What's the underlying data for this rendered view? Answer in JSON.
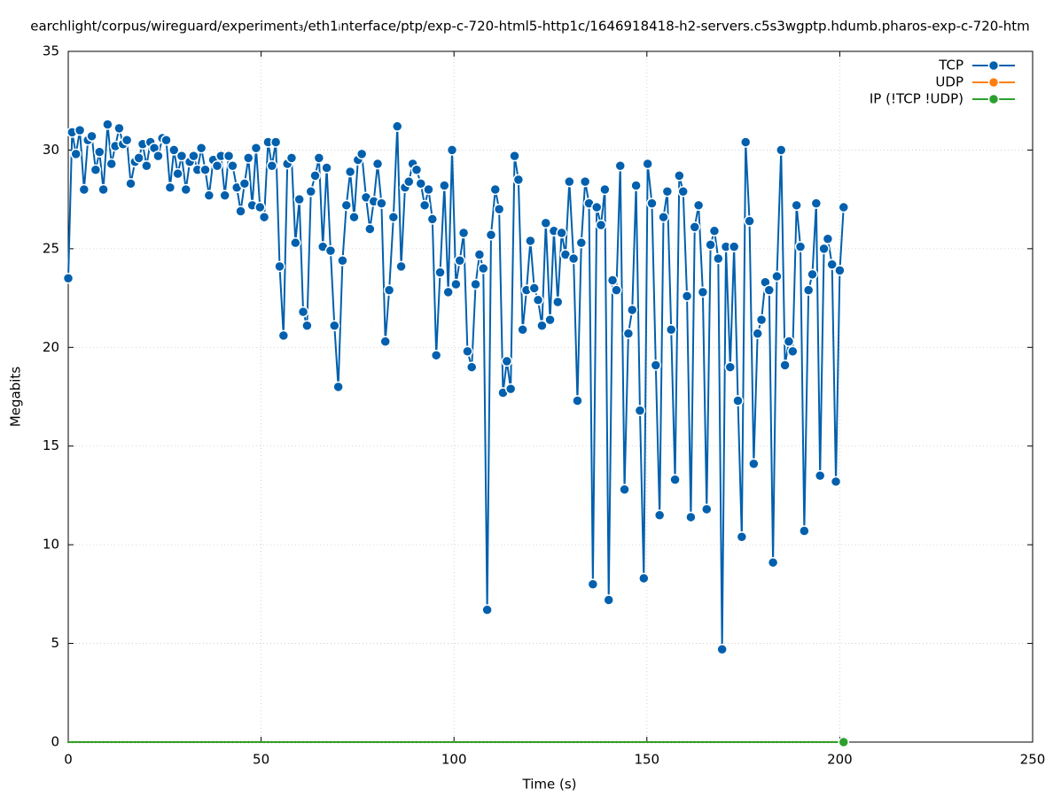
{
  "chart_data": {
    "type": "line",
    "title": "earchlight/corpus/wireguard/experiment₃/eth1ᵢnterface/ptp/exp-c-720-html5-http1c/1646918418-h2-servers.c5s3wgptp.hdumb.pharos-exp-c-720-htm",
    "x_label": "Time (s)",
    "y_label": "Megabits",
    "xlim": [
      0,
      250
    ],
    "xticks": [
      0,
      50,
      100,
      150,
      200,
      250
    ],
    "ylim": [
      0,
      35
    ],
    "yticks": [
      0,
      5,
      10,
      15,
      20,
      25,
      30,
      35
    ],
    "grid": true,
    "legend": "top-right",
    "x": [
      0,
      1,
      2,
      3,
      4.1,
      5.1,
      6.1,
      7.1,
      8.1,
      9.1,
      10.2,
      11.2,
      12.2,
      13.2,
      14.2,
      15.2,
      16.2,
      17.3,
      18.3,
      19.3,
      20.3,
      21.3,
      22.3,
      23.3,
      24.4,
      25.4,
      26.4,
      27.4,
      28.4,
      29.4,
      30.5,
      31.5,
      32.5,
      33.5,
      34.5,
      35.5,
      36.5,
      37.6,
      38.6,
      39.6,
      40.6,
      41.6,
      42.6,
      43.7,
      44.7,
      45.7,
      46.7,
      47.7,
      48.7,
      49.7,
      50.8,
      51.8,
      52.8,
      53.8,
      54.8,
      55.8,
      56.8,
      57.9,
      58.9,
      59.9,
      60.9,
      61.9,
      62.9,
      64,
      65,
      66,
      67,
      68,
      69,
      70,
      71.1,
      72.1,
      73.1,
      74.1,
      75.1,
      76.1,
      77.2,
      78.2,
      79.2,
      80.2,
      81.2,
      82.2,
      83.2,
      84.3,
      85.3,
      86.3,
      87.3,
      88.3,
      89.3,
      90.3,
      91.4,
      92.4,
      93.4,
      94.4,
      95.4,
      96.4,
      97.5,
      98.5,
      99.5,
      100.5,
      101.5,
      102.5,
      103.5,
      104.6,
      105.6,
      106.6,
      107.6,
      108.6,
      109.6,
      110.7,
      111.7,
      112.7,
      113.7,
      114.7,
      115.7,
      116.7,
      117.8,
      118.8,
      119.8,
      120.8,
      121.8,
      122.8,
      123.8,
      124.9,
      125.9,
      126.9,
      127.9,
      128.9,
      129.9,
      131,
      132,
      133,
      134,
      135,
      136,
      137,
      138.1,
      139.1,
      140.1,
      141.1,
      142.1,
      143.1,
      144.2,
      145.2,
      146.2,
      147.2,
      148.2,
      149.2,
      150.2,
      151.3,
      152.3,
      153.3,
      154.3,
      155.3,
      156.3,
      157.3,
      158.4,
      159.4,
      160.4,
      161.4,
      162.4,
      163.4,
      164.5,
      165.5,
      166.5,
      167.5,
      168.5,
      169.5,
      170.5,
      171.6,
      172.6,
      173.6,
      174.6,
      175.6,
      176.6,
      177.7,
      178.7,
      179.7,
      180.7,
      181.7,
      182.7,
      183.7,
      184.8,
      185.8,
      186.8,
      187.8,
      188.8,
      189.8,
      190.8,
      191.9,
      192.9,
      193.9,
      194.9,
      195.9,
      196.9,
      198,
      199,
      200,
      201
    ],
    "series": [
      {
        "name": "TCP",
        "color": "#0060ad",
        "values": [
          23.5,
          30.9,
          29.8,
          31.0,
          28.0,
          30.5,
          30.7,
          29.0,
          29.9,
          28.0,
          31.3,
          29.3,
          30.2,
          31.1,
          30.3,
          30.5,
          28.3,
          29.4,
          29.6,
          30.3,
          29.2,
          30.4,
          30.1,
          29.7,
          30.6,
          30.5,
          28.1,
          30.0,
          28.8,
          29.7,
          28.0,
          29.4,
          29.7,
          29.0,
          30.1,
          29.0,
          27.7,
          29.5,
          29.2,
          29.7,
          27.7,
          29.7,
          29.2,
          28.1,
          26.9,
          28.3,
          29.6,
          27.2,
          30.1,
          27.1,
          26.6,
          30.4,
          29.2,
          30.4,
          24.1,
          20.6,
          29.3,
          29.6,
          25.3,
          27.5,
          21.8,
          21.1,
          27.9,
          28.7,
          29.6,
          25.1,
          29.1,
          24.9,
          21.1,
          18.0,
          24.4,
          27.2,
          28.9,
          26.6,
          29.5,
          29.8,
          27.6,
          26.0,
          27.4,
          29.3,
          27.3,
          20.3,
          22.9,
          26.6,
          31.2,
          24.1,
          28.1,
          28.4,
          29.3,
          29.0,
          28.3,
          27.2,
          28.0,
          26.5,
          19.6,
          23.8,
          28.2,
          22.8,
          30.0,
          23.2,
          24.4,
          25.8,
          19.8,
          19.0,
          23.2,
          24.7,
          24.0,
          6.7,
          25.7,
          28.0,
          27.0,
          17.7,
          19.3,
          17.9,
          29.7,
          28.5,
          20.9,
          22.9,
          25.4,
          23.0,
          22.4,
          21.1,
          26.3,
          21.4,
          25.9,
          22.3,
          25.8,
          24.7,
          28.4,
          24.5,
          17.3,
          25.3,
          28.4,
          27.3,
          8.0,
          27.1,
          26.2,
          28.0,
          7.2,
          23.4,
          22.9,
          29.2,
          12.8,
          20.7,
          21.9,
          28.2,
          16.8,
          8.3,
          29.3,
          27.3,
          19.1,
          11.5,
          26.6,
          27.9,
          20.9,
          13.3,
          28.7,
          27.9,
          22.6,
          11.4,
          26.1,
          27.2,
          22.8,
          11.8,
          25.2,
          25.9,
          24.5,
          4.7,
          25.1,
          19.0,
          25.1,
          17.3,
          10.4,
          30.4,
          26.4,
          14.1,
          20.7,
          21.4,
          23.3,
          22.9,
          9.1,
          23.6,
          30.0,
          19.1,
          20.3,
          19.8,
          27.2,
          25.1,
          10.7,
          22.9,
          23.7,
          27.3,
          13.5,
          25.0,
          25.5,
          24.2,
          13.2,
          23.9,
          27.1
        ]
      },
      {
        "name": "UDP",
        "color": "#ff7f0e",
        "values": [
          0,
          0,
          0,
          0,
          0,
          0,
          0,
          0,
          0,
          0,
          0,
          0,
          0,
          0,
          0,
          0,
          0,
          0,
          0,
          0,
          0,
          0,
          0,
          0,
          0,
          0,
          0,
          0,
          0,
          0,
          0,
          0,
          0,
          0,
          0,
          0,
          0,
          0,
          0,
          0,
          0,
          0,
          0,
          0,
          0,
          0,
          0,
          0,
          0,
          0,
          0,
          0,
          0,
          0,
          0,
          0,
          0,
          0,
          0,
          0,
          0,
          0,
          0,
          0,
          0,
          0,
          0,
          0,
          0,
          0,
          0,
          0,
          0,
          0,
          0,
          0,
          0,
          0,
          0,
          0,
          0,
          0,
          0,
          0,
          0,
          0,
          0,
          0,
          0,
          0,
          0,
          0,
          0,
          0,
          0,
          0,
          0,
          0,
          0,
          0,
          0,
          0,
          0,
          0,
          0,
          0,
          0,
          0,
          0,
          0,
          0,
          0,
          0,
          0,
          0,
          0,
          0,
          0,
          0,
          0,
          0,
          0,
          0,
          0,
          0,
          0,
          0,
          0,
          0,
          0,
          0,
          0,
          0,
          0,
          0,
          0,
          0,
          0,
          0,
          0,
          0,
          0,
          0,
          0,
          0,
          0,
          0,
          0,
          0,
          0,
          0,
          0,
          0,
          0,
          0,
          0,
          0,
          0,
          0,
          0,
          0,
          0,
          0,
          0,
          0,
          0,
          0,
          0,
          0,
          0,
          0,
          0,
          0,
          0,
          0,
          0,
          0,
          0,
          0,
          0,
          0,
          0,
          0,
          0,
          0,
          0,
          0,
          0,
          0,
          0,
          0,
          0,
          0,
          0,
          0,
          0,
          0,
          0,
          0
        ]
      },
      {
        "name": "IP (!TCP  !UDP)",
        "color": "#2ca02c",
        "values": [
          0,
          0,
          0,
          0,
          0,
          0,
          0,
          0,
          0,
          0,
          0,
          0,
          0,
          0,
          0,
          0,
          0,
          0,
          0,
          0,
          0,
          0,
          0,
          0,
          0,
          0,
          0,
          0,
          0,
          0,
          0,
          0,
          0,
          0,
          0,
          0,
          0,
          0,
          0,
          0,
          0,
          0,
          0,
          0,
          0,
          0,
          0,
          0,
          0,
          0,
          0,
          0,
          0,
          0,
          0,
          0,
          0,
          0,
          0,
          0,
          0,
          0,
          0,
          0,
          0,
          0,
          0,
          0,
          0,
          0,
          0,
          0,
          0,
          0,
          0,
          0,
          0,
          0,
          0,
          0,
          0,
          0,
          0,
          0,
          0,
          0,
          0,
          0,
          0,
          0,
          0,
          0,
          0,
          0,
          0,
          0,
          0,
          0,
          0,
          0,
          0,
          0,
          0,
          0,
          0,
          0,
          0,
          0,
          0,
          0,
          0,
          0,
          0,
          0,
          0,
          0,
          0,
          0,
          0,
          0,
          0,
          0,
          0,
          0,
          0,
          0,
          0,
          0,
          0,
          0,
          0,
          0,
          0,
          0,
          0,
          0,
          0,
          0,
          0,
          0,
          0,
          0,
          0,
          0,
          0,
          0,
          0,
          0,
          0,
          0,
          0,
          0,
          0,
          0,
          0,
          0,
          0,
          0,
          0,
          0,
          0,
          0,
          0,
          0,
          0,
          0,
          0,
          0,
          0,
          0,
          0,
          0,
          0,
          0,
          0,
          0,
          0,
          0,
          0,
          0,
          0,
          0,
          0,
          0,
          0,
          0,
          0,
          0,
          0,
          0,
          0,
          0,
          0,
          0,
          0,
          0,
          0,
          0,
          0
        ]
      }
    ]
  }
}
